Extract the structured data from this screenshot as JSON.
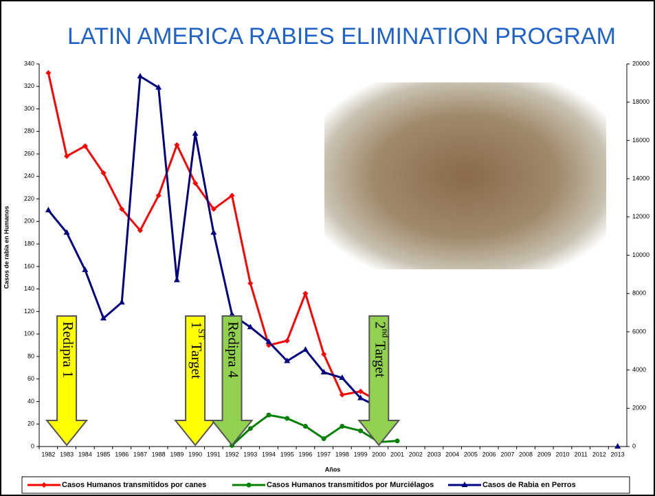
{
  "chart_data": {
    "type": "line",
    "title": "LATIN AMERICA RABIES ELIMINATION PROGRAM",
    "x_label": "Años",
    "y_label": "Casos de rabia en Humanos",
    "categories": [
      "1982",
      "1983",
      "1984",
      "1985",
      "1986",
      "1987",
      "1988",
      "1989",
      "1990",
      "1991",
      "1992",
      "1993",
      "1994",
      "1995",
      "1996",
      "1997",
      "1998",
      "1999",
      "2000",
      "2001",
      "2002",
      "2003",
      "2004",
      "2005",
      "2006",
      "2007",
      "2008",
      "2009",
      "2010",
      "2011",
      "2012",
      "2013"
    ],
    "ylim": [
      0,
      340
    ],
    "yticks": [
      0,
      20,
      40,
      60,
      80,
      100,
      120,
      140,
      160,
      180,
      200,
      220,
      240,
      260,
      280,
      300,
      320,
      340
    ],
    "y2lim": [
      0,
      20000
    ],
    "y2ticks": [
      0,
      2000,
      4000,
      6000,
      8000,
      10000,
      12000,
      14000,
      16000,
      18000,
      20000
    ],
    "series": [
      {
        "name": "Casos Humanos transmitidos por canes",
        "color": "#ff0000",
        "marker": "diamond",
        "values": [
          332,
          258,
          267,
          243,
          211,
          192,
          223,
          268,
          234,
          211,
          223,
          145,
          90,
          94,
          136,
          82,
          46,
          49,
          40,
          null,
          null,
          null,
          null,
          null,
          null,
          null,
          null,
          null,
          null,
          null,
          null,
          null
        ]
      },
      {
        "name": "Casos Humanos transmitidos por Murciélagos",
        "color": "#008000",
        "marker": "circle",
        "values": [
          null,
          null,
          null,
          null,
          null,
          null,
          null,
          null,
          null,
          null,
          1,
          16,
          28,
          25,
          18,
          7,
          18,
          14,
          4,
          5,
          null,
          null,
          null,
          null,
          null,
          null,
          null,
          null,
          null,
          null,
          null,
          null
        ]
      },
      {
        "name": "Casos de Rabia en Perros",
        "color": "#000080",
        "marker": "triangle",
        "axis": "y2",
        "values": [
          12350,
          11180,
          9230,
          6700,
          7530,
          19350,
          18760,
          8700,
          16350,
          11180,
          6900,
          6240,
          5470,
          4470,
          5060,
          3880,
          3590,
          2530,
          2060,
          null,
          null,
          null,
          null,
          null,
          null,
          null,
          null,
          null,
          null,
          null,
          null,
          0
        ]
      }
    ],
    "annotations": [
      {
        "text": "Redipra 1",
        "x": "1983",
        "color": "#ffff00"
      },
      {
        "number": "1",
        "superscript": "ST",
        "text": "Target",
        "x": "1990",
        "color": "#ffff00"
      },
      {
        "text": "Redipra 4",
        "x": "1992",
        "color": "#92d050"
      },
      {
        "number": "2",
        "superscript": "nd",
        "text": "Target",
        "x": "2000",
        "color": "#92d050"
      }
    ]
  }
}
